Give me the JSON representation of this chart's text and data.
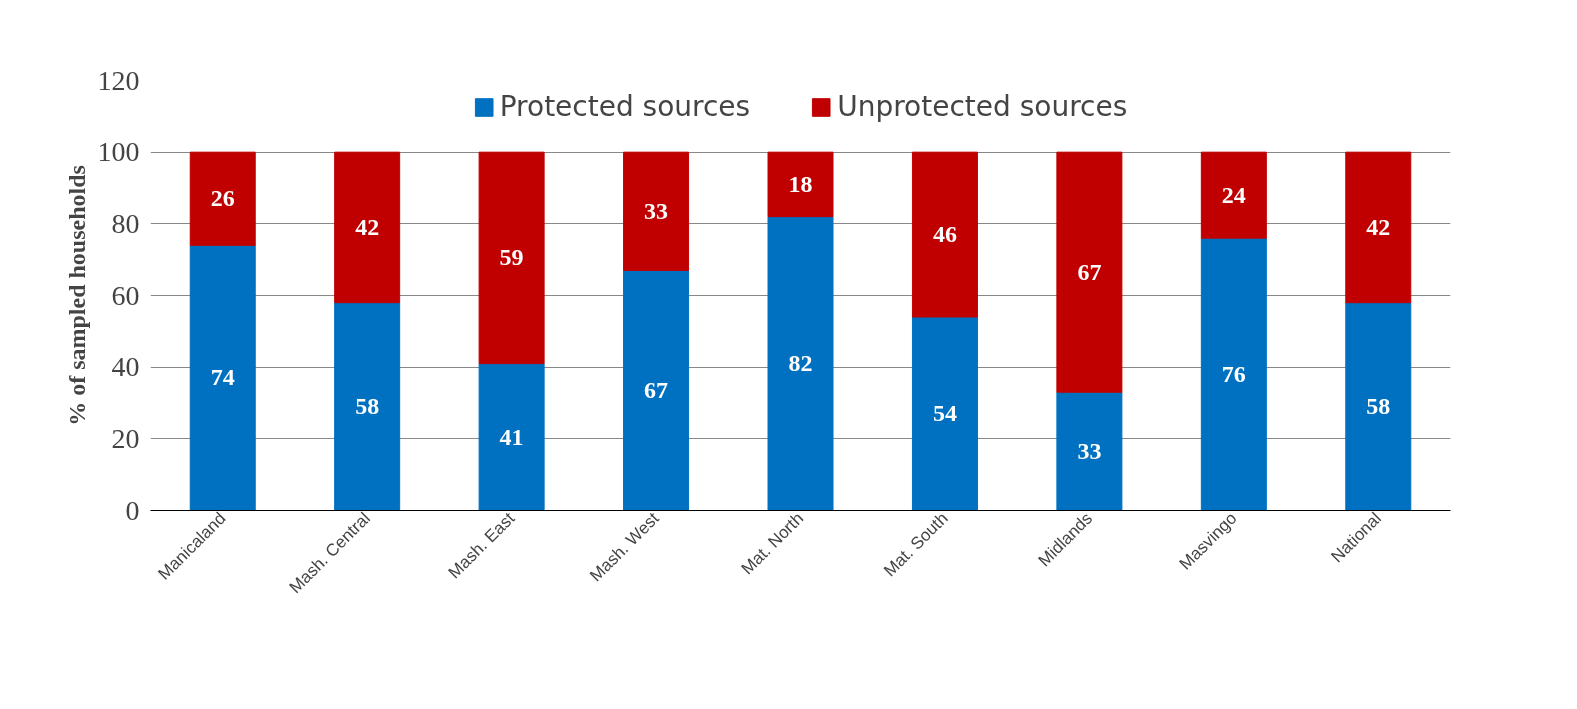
{
  "chart_data": {
    "type": "bar",
    "stacked": true,
    "ylabel": "% of sampled households",
    "categories": [
      "Manicaland",
      "Mash. Central",
      "Mash. East",
      "Mash. West",
      "Mat. North",
      "Mat. South",
      "Midlands",
      "Masvingo",
      "National"
    ],
    "series": [
      {
        "name": "Protected sources",
        "color": "#0070c0",
        "values": [
          74,
          58,
          41,
          67,
          82,
          54,
          33,
          76,
          58
        ]
      },
      {
        "name": "Unprotected sources",
        "color": "#c00000",
        "values": [
          26,
          42,
          59,
          33,
          18,
          46,
          67,
          24,
          42
        ]
      }
    ],
    "ylim": [
      0,
      120
    ],
    "yticks": [
      0,
      20,
      40,
      60,
      80,
      100,
      120
    ],
    "grid": "y",
    "legend": "top",
    "data_labels": true
  }
}
